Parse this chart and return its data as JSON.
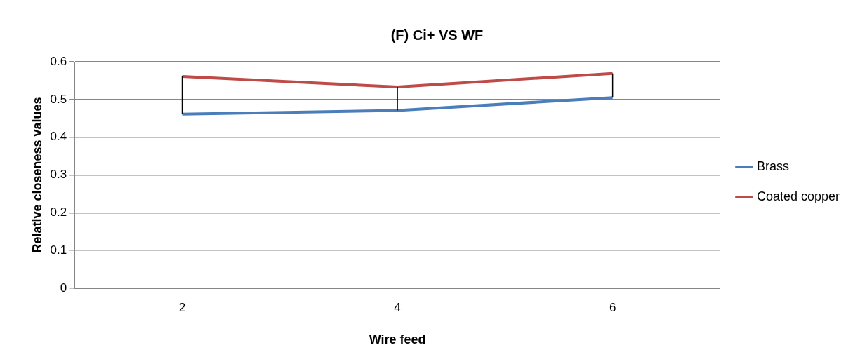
{
  "chart_data": {
    "type": "line",
    "title": "(F) Ci+ VS WF",
    "xlabel": "Wire feed",
    "ylabel": "Relative closeness values",
    "categories": [
      "2",
      "4",
      "6"
    ],
    "series": [
      {
        "name": "Brass",
        "color": "#4a7ebb",
        "values": [
          0.461,
          0.471,
          0.505
        ]
      },
      {
        "name": "Coated copper",
        "color": "#be4b48",
        "values": [
          0.561,
          0.533,
          0.569
        ],
        "errors": [
          [
            0.461,
            0.561
          ],
          [
            0.471,
            0.533
          ],
          [
            0.505,
            0.569
          ]
        ]
      }
    ],
    "ylim": [
      0,
      0.6
    ],
    "yticks": [
      0,
      0.1,
      0.2,
      0.3,
      0.4,
      0.5,
      0.6
    ],
    "grid": "y",
    "legend": "right",
    "marker": "none",
    "line_style": "solid"
  }
}
